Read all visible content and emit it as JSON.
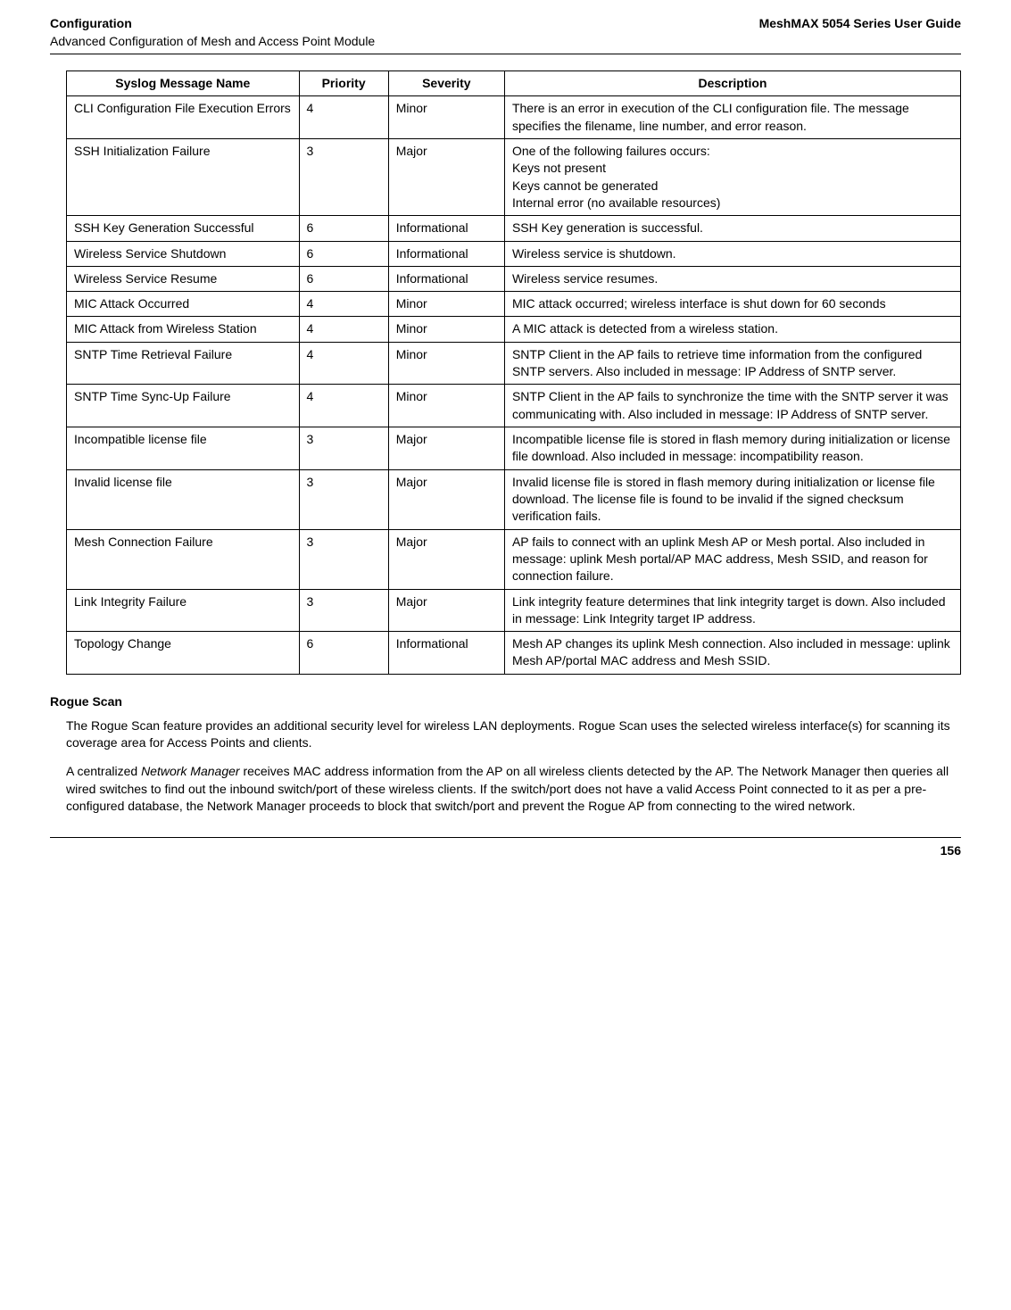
{
  "header": {
    "leftTop": "Configuration",
    "leftSub": "Advanced Configuration of Mesh and Access Point Module",
    "right": "MeshMAX 5054 Series User Guide"
  },
  "table": {
    "columns": [
      "Syslog Message Name",
      "Priority",
      "Severity",
      "Description"
    ],
    "rows": [
      {
        "name": "CLI Configuration File Execution Errors",
        "priority": "4",
        "severity": "Minor",
        "desc": "There is an error in execution of the CLI configuration file. The message specifies the filename, line number, and error reason."
      },
      {
        "name": "SSH Initialization Failure",
        "priority": "3",
        "severity": "Major",
        "desc": "One of the following failures occurs:\nKeys not present\nKeys cannot be generated\nInternal error (no available resources)"
      },
      {
        "name": "SSH Key Generation Successful",
        "priority": "6",
        "severity": "Informational",
        "desc": "SSH Key generation is successful."
      },
      {
        "name": "Wireless Service Shutdown",
        "priority": "6",
        "severity": "Informational",
        "desc": "Wireless service is shutdown."
      },
      {
        "name": "Wireless Service Resume",
        "priority": "6",
        "severity": "Informational",
        "desc": "Wireless service resumes."
      },
      {
        "name": "MIC Attack Occurred",
        "priority": "4",
        "severity": "Minor",
        "desc": "MIC attack occurred; wireless interface is shut down for 60 seconds"
      },
      {
        "name": "MIC Attack from Wireless Station",
        "priority": "4",
        "severity": "Minor",
        "desc": "A MIC attack is detected from a wireless station."
      },
      {
        "name": "SNTP Time Retrieval Failure",
        "priority": "4",
        "severity": "Minor",
        "desc": "SNTP Client in the AP fails to retrieve time information from the configured SNTP servers. Also included in message: IP Address of SNTP server."
      },
      {
        "name": "SNTP Time Sync-Up Failure",
        "priority": "4",
        "severity": "Minor",
        "desc": "SNTP Client in the AP fails to synchronize the time with the SNTP server it was communicating with. Also included in message: IP Address of SNTP server."
      },
      {
        "name": "Incompatible license file",
        "priority": "3",
        "severity": "Major",
        "desc": "Incompatible license file is stored in flash memory during initialization or license file download. Also included in message: incompatibility reason."
      },
      {
        "name": "Invalid license file",
        "priority": "3",
        "severity": "Major",
        "desc": "Invalid license file is stored in flash memory during initialization or license file download. The license file is found to be invalid if the signed checksum verification fails."
      },
      {
        "name": "Mesh Connection Failure",
        "priority": "3",
        "severity": "Major",
        "desc": "AP fails to connect with an uplink Mesh AP or Mesh portal. Also included in message: uplink Mesh portal/AP MAC address, Mesh SSID, and reason for connection failure."
      },
      {
        "name": "Link Integrity Failure",
        "priority": "3",
        "severity": "Major",
        "desc": "Link integrity feature determines that link integrity target is down. Also included in message: Link Integrity target IP address."
      },
      {
        "name": "Topology Change",
        "priority": "6",
        "severity": "Informational",
        "desc": "Mesh AP changes its uplink Mesh connection. Also included in message: uplink Mesh AP/portal MAC address and Mesh SSID."
      }
    ]
  },
  "section": {
    "title": "Rogue Scan",
    "para1": "The Rogue Scan feature provides an additional security level for wireless LAN deployments. Rogue Scan uses the selected wireless interface(s) for scanning its coverage area for Access Points and clients.",
    "para2_pre": "A centralized ",
    "para2_italic": "Network Manager",
    "para2_post": " receives MAC address information from the AP on all wireless clients detected by the AP. The Network Manager then queries all wired switches to find out the inbound switch/port of these wireless clients. If the switch/port does not have a valid Access Point connected to it as per a pre-configured database, the Network Manager proceeds to block that switch/port and prevent the Rogue AP from connecting to the wired network."
  },
  "footer": {
    "pageNum": "156"
  }
}
